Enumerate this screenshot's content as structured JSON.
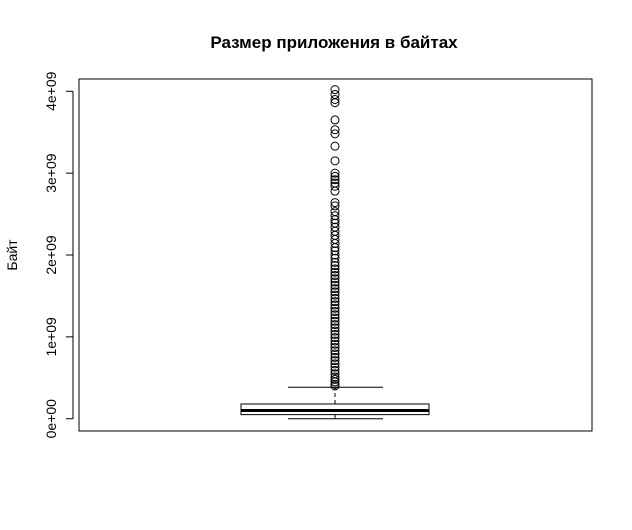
{
  "chart_data": {
    "type": "boxplot",
    "title": "Размер приложения в байтах",
    "xlabel": "",
    "ylabel": "Байт",
    "ylim": [
      -150000000,
      4150000000
    ],
    "y_ticks": [
      0,
      1000000000,
      2000000000,
      3000000000,
      4000000000
    ],
    "y_tick_labels": [
      "0e+00",
      "1e+09",
      "2e+09",
      "3e+09",
      "4e+09"
    ],
    "grid": false,
    "legend": "none",
    "box": {
      "min": 0,
      "q1": 50000000,
      "median": 100000000,
      "q3": 180000000,
      "upper_whisker": 385000000
    },
    "outliers": [
      4020000000,
      3960000000,
      3900000000,
      3860000000,
      3650000000,
      3530000000,
      3480000000,
      3330000000,
      3150000000,
      3000000000,
      2960000000,
      2920000000,
      2880000000,
      2840000000,
      2780000000,
      2640000000,
      2600000000,
      2530000000,
      2480000000,
      2430000000,
      2390000000,
      2340000000,
      2290000000,
      2240000000,
      2190000000,
      2140000000,
      2090000000,
      2050000000,
      2000000000,
      1960000000,
      1910000000,
      1870000000,
      1830000000,
      1790000000,
      1750000000,
      1710000000,
      1670000000,
      1630000000,
      1590000000,
      1550000000,
      1510000000,
      1470000000,
      1430000000,
      1390000000,
      1350000000,
      1310000000,
      1270000000,
      1230000000,
      1190000000,
      1150000000,
      1110000000,
      1070000000,
      1030000000,
      990000000,
      950000000,
      910000000,
      870000000,
      830000000,
      790000000,
      750000000,
      710000000,
      670000000,
      630000000,
      590000000,
      550000000,
      510000000,
      480000000,
      450000000,
      420000000,
      400000000
    ]
  }
}
